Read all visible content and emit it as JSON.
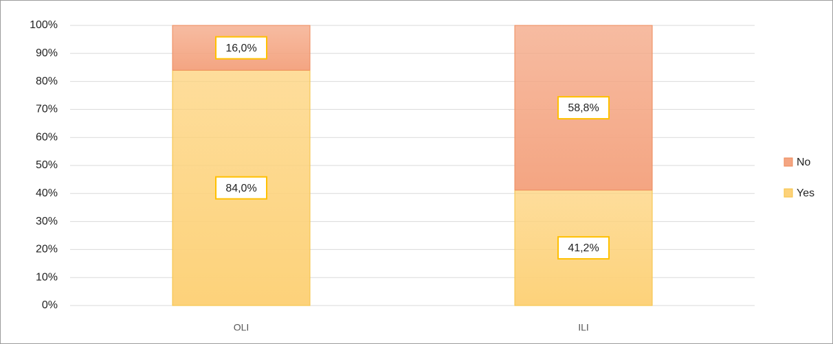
{
  "chart_data": {
    "type": "stacked_bar",
    "categories": [
      "OLI",
      "ILI"
    ],
    "series": [
      {
        "name": "Yes",
        "color": "#fdd27a",
        "values": [
          84.0,
          41.2
        ],
        "value_labels": [
          "84,0%",
          "41,2%"
        ]
      },
      {
        "name": "No",
        "color": "#f4a582",
        "values": [
          16.0,
          58.8
        ],
        "value_labels": [
          "16,0%",
          "58,8%"
        ]
      }
    ],
    "ylim": [
      0,
      100
    ],
    "yticks": [
      {
        "value": 0,
        "label": "0%"
      },
      {
        "value": 10,
        "label": "10%"
      },
      {
        "value": 20,
        "label": "20%"
      },
      {
        "value": 30,
        "label": "30%"
      },
      {
        "value": 40,
        "label": "40%"
      },
      {
        "value": 50,
        "label": "50%"
      },
      {
        "value": 60,
        "label": "60%"
      },
      {
        "value": 70,
        "label": "70%"
      },
      {
        "value": 80,
        "label": "80%"
      },
      {
        "value": 90,
        "label": "90%"
      },
      {
        "value": 100,
        "label": "100%"
      }
    ],
    "grid": true,
    "legend": "right"
  }
}
